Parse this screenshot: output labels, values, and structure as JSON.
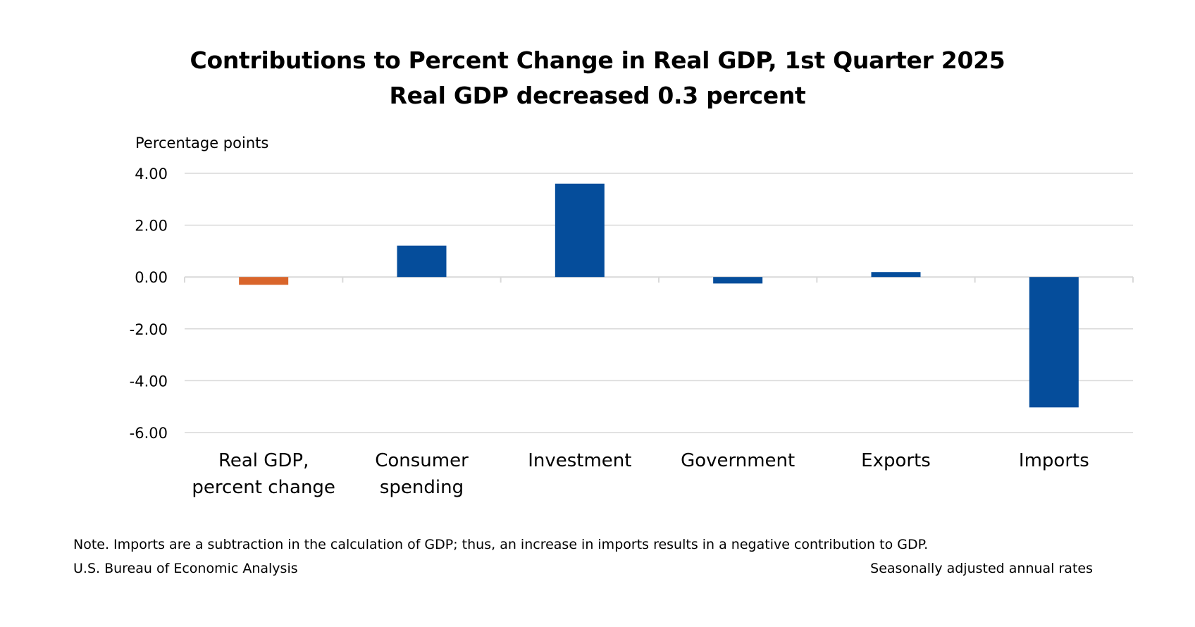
{
  "chart_data": {
    "type": "bar",
    "title": "Contributions to Percent Change in Real GDP, 1st Quarter 2025",
    "subtitle": "Real GDP decreased 0.3 percent",
    "ylabel": "Percentage points",
    "xlabel": "",
    "ylim": [
      -6,
      4
    ],
    "y_ticks": [
      4,
      2,
      0,
      -2,
      -4,
      -6
    ],
    "y_tick_labels": [
      "4.00",
      "2.00",
      "0.00",
      "-2.00",
      "-4.00",
      "-6.00"
    ],
    "categories": [
      [
        "Real GDP,",
        "percent change"
      ],
      [
        "Consumer",
        "spending"
      ],
      [
        "Investment"
      ],
      [
        "Government"
      ],
      [
        "Exports"
      ],
      [
        "Imports"
      ]
    ],
    "values": [
      -0.3,
      1.21,
      3.6,
      -0.25,
      0.19,
      -5.03
    ],
    "bar_colors": [
      "#d9652b",
      "#054d9b",
      "#054d9b",
      "#054d9b",
      "#054d9b",
      "#054d9b"
    ],
    "grid": true,
    "legend": "none"
  },
  "footer": {
    "note": "Note. Imports are a subtraction in the calculation of GDP; thus, an increase in imports results in a negative contribution to GDP.",
    "source": "U.S. Bureau of Economic Analysis",
    "rates": "Seasonally adjusted annual rates"
  },
  "colors": {
    "gridline": "#d9d9d9",
    "axis_text": "#000000"
  }
}
